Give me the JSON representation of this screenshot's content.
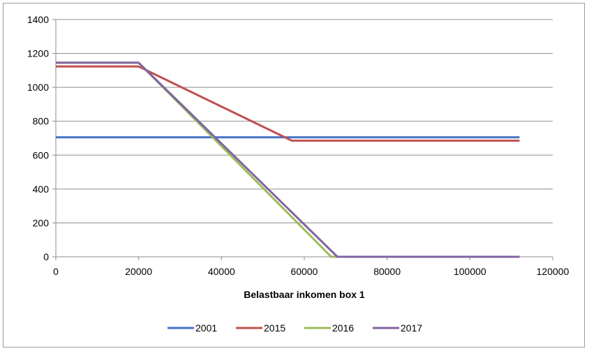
{
  "chart_data": {
    "type": "line",
    "title": "",
    "xlabel": "Belastbaar inkomen box 1",
    "ylabel": "",
    "xlim": [
      0,
      120000
    ],
    "ylim": [
      0,
      1400
    ],
    "x_ticks": [
      "0",
      "20000",
      "40000",
      "60000",
      "80000",
      "100000",
      "120000"
    ],
    "y_ticks": [
      "0",
      "200",
      "400",
      "600",
      "800",
      "1000",
      "1200",
      "1400"
    ],
    "grid": "horizontal",
    "legend_position": "bottom",
    "series": [
      {
        "name": "2001",
        "color": "#4472C4",
        "points": [
          [
            0,
            705
          ],
          [
            112000,
            705
          ]
        ]
      },
      {
        "name": "2015",
        "color": "#C0504D",
        "points": [
          [
            0,
            1123
          ],
          [
            20000,
            1123
          ],
          [
            57000,
            685
          ],
          [
            112000,
            685
          ]
        ]
      },
      {
        "name": "2016",
        "color": "#9BBB59",
        "points": [
          [
            0,
            1145
          ],
          [
            20000,
            1145
          ],
          [
            66500,
            0
          ],
          [
            112000,
            0
          ]
        ]
      },
      {
        "name": "2017",
        "color": "#8064A2",
        "points": [
          [
            0,
            1145
          ],
          [
            20000,
            1145
          ],
          [
            68000,
            0
          ],
          [
            112000,
            0
          ]
        ]
      }
    ]
  }
}
